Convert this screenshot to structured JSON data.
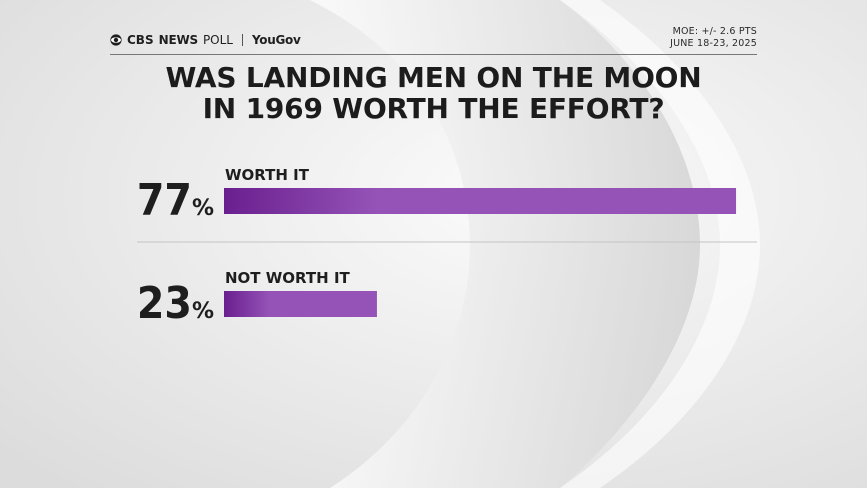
{
  "brand": {
    "network": "CBS",
    "network_suffix": "NEWS",
    "poll_label": "POLL",
    "partner": "YouGov"
  },
  "meta": {
    "moe": "MOE: +/- 2.6 PTS",
    "dates": "JUNE 18-23, 2025"
  },
  "colors": {
    "bar_start": "#6a1f8f",
    "bar_end": "#9553b7",
    "text": "#1e1e1e"
  },
  "chart_data": {
    "type": "bar",
    "orientation": "horizontal",
    "title_lines": [
      "WAS LANDING MEN ON THE MOON",
      "IN 1969 WORTH THE EFFORT?"
    ],
    "categories": [
      "WORTH IT",
      "NOT WORTH IT"
    ],
    "values": [
      77,
      23
    ],
    "value_suffix": "%",
    "xlim": [
      0,
      100
    ]
  }
}
